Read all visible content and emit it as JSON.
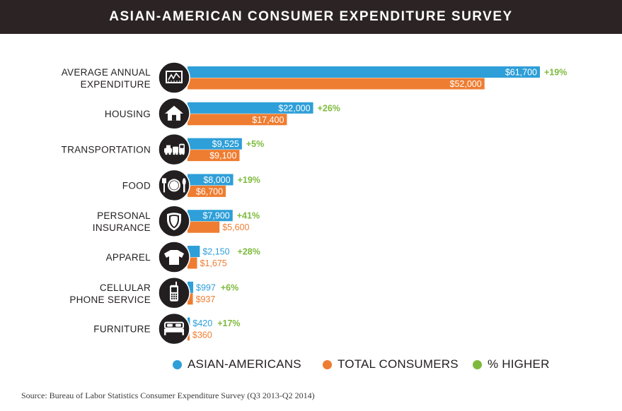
{
  "header": {
    "title": "ASIAN-AMERICAN CONSUMER EXPENDITURE SURVEY"
  },
  "colors": {
    "asian": "#2e9fd8",
    "total": "#ee7d31",
    "higher": "#7dba3c",
    "header_bg": "#2b2324",
    "icon_bg": "#231f20"
  },
  "chart_data": {
    "type": "bar",
    "orientation": "horizontal",
    "title": "ASIAN-AMERICAN CONSUMER EXPENDITURE SURVEY",
    "categories": [
      [
        "AVERAGE ANNUAL",
        "EXPENDITURE"
      ],
      [
        "HOUSING"
      ],
      [
        "TRANSPORTATION"
      ],
      [
        "FOOD"
      ],
      [
        "PERSONAL",
        "INSURANCE"
      ],
      [
        "APPAREL"
      ],
      [
        "CELLULAR",
        "PHONE SERVICE"
      ],
      [
        "FURNITURE"
      ]
    ],
    "icons": [
      "chart-monitor-icon",
      "house-icon",
      "vehicles-icon",
      "plate-cutlery-icon",
      "shield-icon",
      "tshirt-icon",
      "cellphone-icon",
      "bed-icon"
    ],
    "series": [
      {
        "name": "ASIAN-AMERICANS",
        "values": [
          61700,
          22000,
          9525,
          8000,
          7900,
          2150,
          997,
          420
        ],
        "labels": [
          "$61,700",
          "$22,000",
          "$9,525",
          "$8,000",
          "$7,900",
          "$2,150",
          "$997",
          "$420"
        ]
      },
      {
        "name": "TOTAL CONSUMERS",
        "values": [
          52000,
          17400,
          9100,
          6700,
          5600,
          1675,
          937,
          360
        ],
        "labels": [
          "$52,000",
          "$17,400",
          "$9,100",
          "$6,700",
          "$5,600",
          "$1,675",
          "$937",
          "$360"
        ]
      }
    ],
    "pct_higher": [
      "+19%",
      "+26%",
      "+5%",
      "+19%",
      "+41%",
      "+28%",
      "+6%",
      "+17%"
    ],
    "xlim": [
      0,
      61700
    ],
    "grid": false
  },
  "legend": {
    "items": [
      {
        "label": "ASIAN-AMERICANS"
      },
      {
        "label": "TOTAL CONSUMERS"
      },
      {
        "label": "% HIGHER"
      }
    ]
  },
  "source": "Source: Bureau of Labor Statistics Consumer Expenditure Survey (Q3 2013-Q2 2014)"
}
